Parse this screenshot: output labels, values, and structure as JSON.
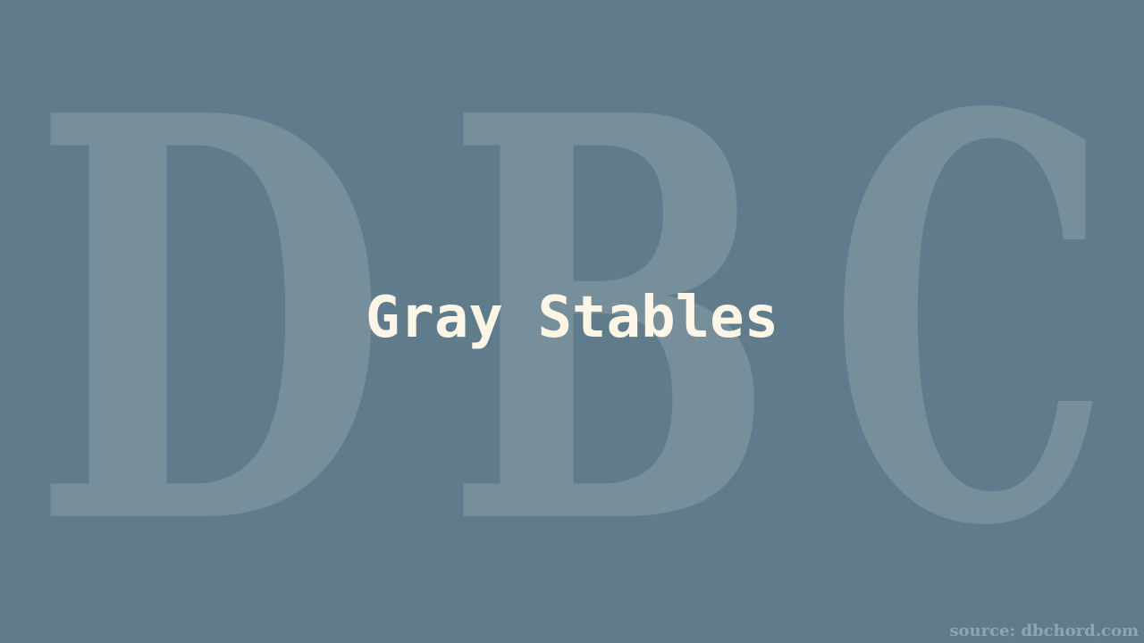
{
  "watermark": {
    "letters": [
      "D",
      "B",
      "C"
    ],
    "color": "#778e9b"
  },
  "title": "Gray Stables",
  "source": "source: dbchord.com",
  "colors": {
    "background": "#5f7b8c",
    "title": "#fdf6e6",
    "source": "#91a4b0"
  }
}
